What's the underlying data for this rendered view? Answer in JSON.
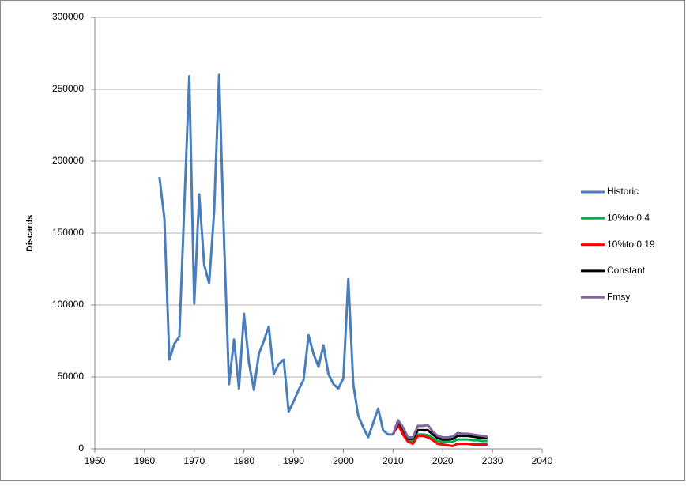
{
  "chart_data": {
    "type": "line",
    "y_label": "Discards",
    "xlim": [
      1950,
      2040
    ],
    "xticks": [
      1950,
      1960,
      1970,
      1980,
      1990,
      2000,
      2010,
      2020,
      2030,
      2040
    ],
    "ylim": [
      0,
      300000
    ],
    "yticks": [
      0,
      50000,
      100000,
      150000,
      200000,
      250000,
      300000
    ],
    "grid": true,
    "legend": "right",
    "series": [
      {
        "name": "Historic",
        "color": "#4a7ebb",
        "x": [
          1963,
          1964,
          1965,
          1966,
          1967,
          1969,
          1970,
          1971,
          1972,
          1973,
          1974,
          1975,
          1976,
          1977,
          1978,
          1979,
          1980,
          1981,
          1982,
          1983,
          1984,
          1985,
          1986,
          1987,
          1988,
          1989,
          1990,
          1991,
          1992,
          1993,
          1994,
          1995,
          1996,
          1997,
          1998,
          1999,
          2000,
          2001,
          2002,
          2003,
          2004,
          2005,
          2006,
          2007,
          2008,
          2009,
          2010
        ],
        "values": [
          189000,
          160000,
          62000,
          73000,
          78000,
          259000,
          101000,
          177000,
          128000,
          115000,
          165000,
          260000,
          145000,
          45000,
          76000,
          42000,
          94000,
          60000,
          41000,
          66000,
          75000,
          85000,
          52000,
          59000,
          62000,
          26000,
          33000,
          41000,
          48000,
          79000,
          66000,
          57000,
          72000,
          52000,
          45000,
          42000,
          49000,
          118000,
          45000,
          23000,
          15000,
          8000,
          18000,
          28000,
          13000,
          10000,
          10000
        ]
      },
      {
        "name": "10%to 0.4",
        "color": "#00b050",
        "x": [
          2010,
          2011,
          2012,
          2013,
          2014,
          2015,
          2016,
          2017,
          2018,
          2019,
          2020,
          2021,
          2022,
          2023,
          2024,
          2025,
          2026,
          2027,
          2028,
          2029
        ],
        "values": [
          10000,
          18000,
          12000,
          6000,
          5500,
          10000,
          10000,
          9500,
          7500,
          5500,
          5000,
          5000,
          5000,
          6500,
          6500,
          6500,
          6000,
          6000,
          5500,
          5500
        ]
      },
      {
        "name": "10%to  0.19",
        "color": "#ff0000",
        "x": [
          2010,
          2011,
          2012,
          2013,
          2014,
          2015,
          2016,
          2017,
          2018,
          2019,
          2020,
          2021,
          2022,
          2023,
          2024,
          2025,
          2026,
          2027,
          2028,
          2029
        ],
        "values": [
          10000,
          17000,
          10000,
          5000,
          3500,
          9000,
          9000,
          8000,
          6000,
          3500,
          3000,
          2500,
          2000,
          3500,
          3500,
          3500,
          3000,
          3000,
          3000,
          3000
        ]
      },
      {
        "name": "Constant",
        "color": "#000000",
        "x": [
          2010,
          2011,
          2012,
          2013,
          2014,
          2015,
          2016,
          2017,
          2018,
          2019,
          2020,
          2021,
          2022,
          2023,
          2024,
          2025,
          2026,
          2027,
          2028,
          2029
        ],
        "values": [
          10000,
          19000,
          14000,
          7000,
          7000,
          13000,
          13000,
          13000,
          10000,
          7500,
          6500,
          6500,
          7000,
          9000,
          9000,
          9000,
          8500,
          8000,
          8000,
          7500
        ]
      },
      {
        "name": "Fmsy",
        "color": "#8064a2",
        "x": [
          2010,
          2011,
          2012,
          2013,
          2014,
          2015,
          2016,
          2017,
          2018,
          2019,
          2020,
          2021,
          2022,
          2023,
          2024,
          2025,
          2026,
          2027,
          2028,
          2029
        ],
        "values": [
          10000,
          20000,
          15000,
          8000,
          8000,
          16000,
          16000,
          16500,
          12000,
          9000,
          8000,
          8000,
          8500,
          11000,
          10500,
          10500,
          10000,
          9500,
          9000,
          8500
        ]
      }
    ]
  }
}
